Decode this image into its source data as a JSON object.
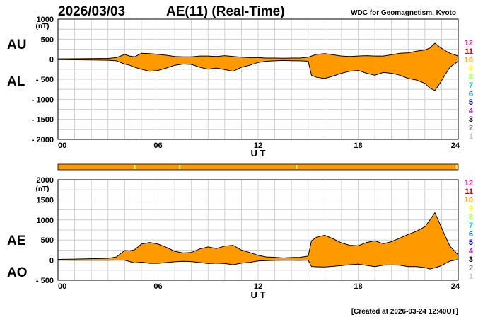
{
  "header": {
    "date": "2026/03/03",
    "title": "AE(11) (Real-Time)",
    "institution": "WDC for Geomagnetism, Kyoto"
  },
  "footer": {
    "created": "[Created at 2026-03-24 12:40UT]"
  },
  "colors": {
    "fill": "#ff9900",
    "outline": "#000000",
    "grid": "#c8c8c8",
    "stations_bar": "#ff9900",
    "stations_bar_ticks": "#ffff66"
  },
  "station_legend": [
    {
      "label": "12",
      "color": "#ff1493"
    },
    {
      "label": "11",
      "color": "#dd0000"
    },
    {
      "label": "10",
      "color": "#ff9900"
    },
    {
      "label": "9",
      "color": "#ffff00"
    },
    {
      "label": "8",
      "color": "#99ff33"
    },
    {
      "label": "7",
      "color": "#00dddd"
    },
    {
      "label": "6",
      "color": "#0066ff"
    },
    {
      "label": "5",
      "color": "#0000cc"
    },
    {
      "label": "4",
      "color": "#cc00cc"
    },
    {
      "label": "3",
      "color": "#000000"
    },
    {
      "label": "2",
      "color": "#777777"
    },
    {
      "label": "1",
      "color": "#cccccc"
    }
  ],
  "stations_bar": {
    "tick_hours": [
      4.6,
      7.3,
      14.3,
      23.9
    ]
  },
  "chart_data": [
    {
      "type": "area",
      "name": "AU/AL",
      "upper_label": "AU",
      "lower_label": "AL",
      "unit": "(nT)",
      "xlabel": "U T",
      "xlim": [
        0,
        24
      ],
      "ylim": [
        -2000,
        1000
      ],
      "x_ticks": [
        "00",
        "06",
        "12",
        "18",
        "24"
      ],
      "y_ticks": [
        "1000",
        "500",
        "0",
        "- 500",
        "- 1000",
        "- 1500",
        "- 2000"
      ],
      "series": [
        {
          "name": "AU",
          "x": [
            0,
            1,
            2,
            3,
            3.5,
            4,
            4.3,
            4.6,
            5,
            5.5,
            6,
            6.5,
            7,
            7.5,
            8,
            8.5,
            9,
            9.5,
            10,
            10.5,
            11,
            11.5,
            12,
            12.5,
            13,
            13.5,
            14,
            14.5,
            15,
            15.2,
            15.5,
            16,
            16.5,
            17,
            17.5,
            18,
            18.5,
            19,
            19.5,
            20,
            20.5,
            21,
            21.5,
            22,
            22.3,
            22.6,
            22.9,
            23.2,
            23.5,
            24
          ],
          "values": [
            10,
            12,
            15,
            20,
            40,
            120,
            80,
            60,
            150,
            140,
            120,
            100,
            70,
            60,
            60,
            80,
            80,
            70,
            90,
            70,
            50,
            40,
            40,
            30,
            30,
            25,
            30,
            30,
            50,
            80,
            120,
            140,
            110,
            80,
            70,
            80,
            90,
            80,
            80,
            110,
            150,
            160,
            200,
            230,
            280,
            400,
            300,
            220,
            150,
            80
          ]
        },
        {
          "name": "AL",
          "x": [
            0,
            1,
            2,
            3,
            3.5,
            4,
            4.3,
            4.6,
            5,
            5.5,
            6,
            6.5,
            7,
            7.5,
            8,
            8.5,
            9,
            9.5,
            10,
            10.5,
            11,
            11.5,
            12,
            12.5,
            13,
            13.5,
            14,
            14.5,
            15,
            15.2,
            15.5,
            16,
            16.5,
            17,
            17.5,
            18,
            18.5,
            19,
            19.5,
            20,
            20.5,
            21,
            21.5,
            22,
            22.3,
            22.6,
            22.9,
            23.2,
            23.5,
            24
          ],
          "values": [
            -10,
            -15,
            -20,
            -25,
            -40,
            -120,
            -150,
            -200,
            -250,
            -300,
            -280,
            -220,
            -150,
            -120,
            -130,
            -200,
            -250,
            -220,
            -260,
            -300,
            -200,
            -150,
            -80,
            -50,
            -40,
            -30,
            -35,
            -40,
            -50,
            -400,
            -450,
            -480,
            -420,
            -350,
            -300,
            -280,
            -350,
            -400,
            -330,
            -350,
            -400,
            -480,
            -520,
            -600,
            -720,
            -780,
            -600,
            -400,
            -200,
            -50
          ]
        }
      ]
    },
    {
      "type": "area",
      "name": "AE/AO",
      "upper_label": "AE",
      "lower_label": "AO",
      "unit": "(nT)",
      "xlabel": "U T",
      "xlim": [
        0,
        24
      ],
      "ylim": [
        -500,
        2000
      ],
      "x_ticks": [
        "00",
        "06",
        "12",
        "18",
        "24"
      ],
      "y_ticks": [
        "2000",
        "1500",
        "1000",
        "500",
        "0",
        "- 500"
      ],
      "series": [
        {
          "name": "AE",
          "x": [
            0,
            1,
            2,
            3,
            3.5,
            4,
            4.3,
            4.6,
            5,
            5.5,
            6,
            6.5,
            7,
            7.5,
            8,
            8.5,
            9,
            9.5,
            10,
            10.5,
            11,
            11.5,
            12,
            12.5,
            13,
            13.5,
            14,
            14.5,
            15,
            15.2,
            15.5,
            16,
            16.5,
            17,
            17.5,
            18,
            18.5,
            19,
            19.5,
            20,
            20.5,
            21,
            21.5,
            22,
            22.3,
            22.6,
            22.9,
            23.2,
            23.5,
            24
          ],
          "values": [
            20,
            27,
            35,
            45,
            80,
            240,
            230,
            260,
            400,
            440,
            400,
            320,
            220,
            180,
            190,
            280,
            330,
            290,
            350,
            370,
            250,
            190,
            120,
            80,
            70,
            55,
            65,
            70,
            100,
            480,
            570,
            620,
            530,
            430,
            370,
            360,
            440,
            480,
            410,
            460,
            550,
            640,
            720,
            830,
            1000,
            1180,
            900,
            620,
            350,
            130
          ]
        },
        {
          "name": "AO",
          "x": [
            0,
            1,
            2,
            3,
            3.5,
            4,
            4.3,
            4.6,
            5,
            5.5,
            6,
            6.5,
            7,
            7.5,
            8,
            8.5,
            9,
            9.5,
            10,
            10.5,
            11,
            11.5,
            12,
            12.5,
            13,
            13.5,
            14,
            14.5,
            15,
            15.2,
            15.5,
            16,
            16.5,
            17,
            17.5,
            18,
            18.5,
            19,
            19.5,
            20,
            20.5,
            21,
            21.5,
            22,
            22.3,
            22.6,
            22.9,
            23.2,
            23.5,
            24
          ],
          "values": [
            0,
            -1,
            -2,
            -2,
            0,
            0,
            -35,
            -70,
            -50,
            -80,
            -80,
            -60,
            -40,
            -30,
            -35,
            -60,
            -85,
            -75,
            -85,
            -115,
            -75,
            -55,
            -20,
            -10,
            -5,
            -2,
            -2,
            -5,
            0,
            -160,
            -165,
            -170,
            -155,
            -135,
            -115,
            -100,
            -130,
            -160,
            -125,
            -120,
            -125,
            -160,
            -160,
            -185,
            -220,
            -190,
            -150,
            -90,
            -25,
            15
          ]
        }
      ]
    }
  ]
}
